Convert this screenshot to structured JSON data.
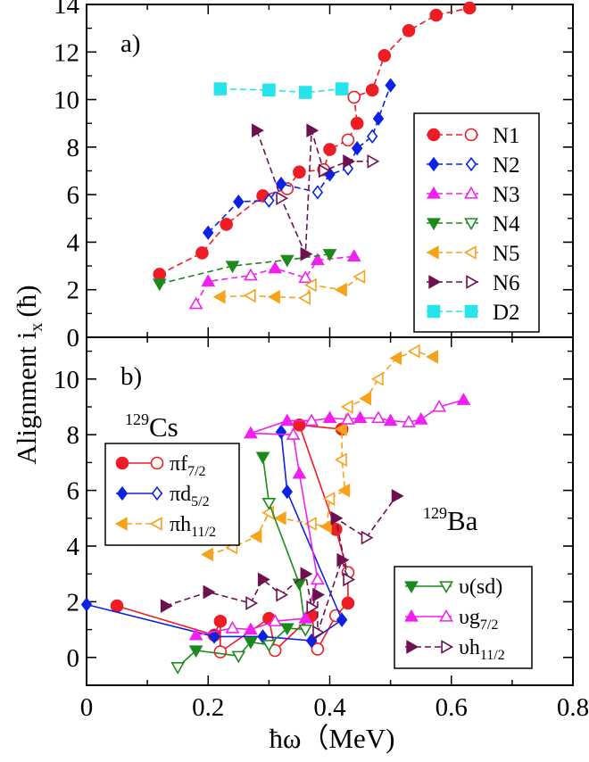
{
  "y_axis_label": "Alignment i",
  "y_axis_label_sub": "x",
  "y_axis_label_unit": "(ħ)",
  "x_axis_label": "ħω（MeV)",
  "chart_data": [
    {
      "type": "line",
      "panel_label": "a)",
      "xlim": [
        0,
        0.8
      ],
      "ylim": [
        0,
        14
      ],
      "grid": false,
      "legend_position": "right",
      "x_ticks": [],
      "y_ticks": [
        "0",
        "2",
        "4",
        "6",
        "8",
        "10",
        "12",
        "14"
      ],
      "series": [
        {
          "name": "N1",
          "color": "#ee1c24",
          "marker": "circle",
          "dash": true,
          "points": [
            [
              0.12,
              2.65,
              1
            ],
            [
              0.19,
              3.55,
              1
            ],
            [
              0.23,
              4.75,
              1
            ],
            [
              0.29,
              5.95,
              1
            ],
            [
              0.33,
              6.25,
              0
            ],
            [
              0.35,
              6.95,
              1
            ],
            [
              0.39,
              7.05,
              0
            ],
            [
              0.4,
              7.9,
              1
            ],
            [
              0.43,
              8.3,
              0
            ],
            [
              0.445,
              9.0,
              1
            ],
            [
              0.44,
              10.1,
              0
            ],
            [
              0.47,
              10.4,
              1
            ],
            [
              0.49,
              11.85,
              1
            ],
            [
              0.53,
              12.9,
              1
            ],
            [
              0.575,
              13.55,
              1
            ],
            [
              0.63,
              13.85,
              1
            ]
          ]
        },
        {
          "name": "N2",
          "color": "#0b22e4",
          "marker": "diamond",
          "dash": true,
          "points": [
            [
              0.2,
              4.4,
              1
            ],
            [
              0.25,
              5.7,
              1
            ],
            [
              0.3,
              5.75,
              0
            ],
            [
              0.32,
              6.45,
              1
            ],
            [
              0.38,
              6.1,
              0
            ],
            [
              0.4,
              6.85,
              1
            ],
            [
              0.43,
              7.1,
              0
            ],
            [
              0.445,
              7.95,
              1
            ],
            [
              0.47,
              8.45,
              0
            ],
            [
              0.48,
              9.2,
              1
            ],
            [
              0.5,
              10.6,
              1
            ]
          ]
        },
        {
          "name": "N3",
          "color": "#f020f0",
          "marker": "triangle-up",
          "dash": true,
          "points": [
            [
              0.18,
              1.4,
              0
            ],
            [
              0.2,
              2.35,
              1
            ],
            [
              0.27,
              2.6,
              0
            ],
            [
              0.31,
              2.9,
              1
            ],
            [
              0.36,
              2.5,
              0
            ],
            [
              0.38,
              3.25,
              1
            ],
            [
              0.44,
              3.4,
              1
            ]
          ]
        },
        {
          "name": "N4",
          "color": "#1b8a1b",
          "marker": "triangle-down",
          "dash": true,
          "points": [
            [
              0.12,
              2.25,
              1
            ],
            [
              0.24,
              3.0,
              1
            ],
            [
              0.33,
              3.25,
              1
            ],
            [
              0.4,
              3.5,
              1
            ]
          ]
        },
        {
          "name": "N5",
          "color": "#f7a21b",
          "marker": "triangle-left",
          "dash": true,
          "points": [
            [
              0.22,
              1.7,
              1
            ],
            [
              0.27,
              1.75,
              0
            ],
            [
              0.31,
              1.7,
              1
            ],
            [
              0.36,
              1.65,
              0
            ],
            [
              0.37,
              2.2,
              0
            ],
            [
              0.42,
              2.0,
              1
            ],
            [
              0.45,
              2.55,
              0
            ]
          ]
        },
        {
          "name": "N6",
          "color": "#6d1150",
          "marker": "triangle-right",
          "dash": true,
          "points": [
            [
              0.28,
              8.7,
              1
            ],
            [
              0.32,
              5.85,
              0
            ],
            [
              0.36,
              3.5,
              1
            ],
            [
              0.37,
              8.7,
              1
            ],
            [
              0.39,
              7.0,
              0
            ],
            [
              0.43,
              7.4,
              1
            ],
            [
              0.47,
              7.4,
              0
            ]
          ]
        },
        {
          "name": "D2",
          "color": "#26e4ea",
          "marker": "square",
          "dash": true,
          "points": [
            [
              0.22,
              10.45,
              1
            ],
            [
              0.3,
              10.4,
              1
            ],
            [
              0.36,
              10.3,
              1
            ],
            [
              0.42,
              10.45,
              1
            ]
          ]
        }
      ]
    },
    {
      "type": "line",
      "panel_label": "b)",
      "xlim": [
        0,
        0.8
      ],
      "ylim": [
        -1,
        11.5
      ],
      "grid": false,
      "x_ticks": [
        "0",
        "0.2",
        "0.4",
        "0.6",
        "0.8"
      ],
      "y_ticks": [
        "0",
        "2",
        "4",
        "6",
        "8",
        "10"
      ],
      "annotations": [
        {
          "mass": "129",
          "element": "Cs"
        },
        {
          "mass": "129",
          "element": "Ba"
        }
      ],
      "legends": [
        {
          "position": "left",
          "entries": [
            {
              "base": "πf",
              "sub": "7/2",
              "series": "pi_f72"
            },
            {
              "base": "πd",
              "sub": "5/2",
              "series": "pi_d52"
            },
            {
              "base": "πh",
              "sub": "11/2",
              "series": "pi_h112"
            }
          ]
        },
        {
          "position": "bottom-right",
          "entries": [
            {
              "base": "υ(sd)",
              "sub": "",
              "series": "nu_sd"
            },
            {
              "base": "υg",
              "sub": "7/2",
              "series": "nu_g72"
            },
            {
              "base": "υh",
              "sub": "11/2",
              "series": "nu_h112"
            }
          ]
        }
      ],
      "series": [
        {
          "id": "pi_f72",
          "color": "#ee1c24",
          "marker": "circle",
          "dash": false,
          "points": [
            [
              0.05,
              1.85,
              1
            ],
            [
              0.21,
              0.8,
              1
            ],
            [
              0.22,
              1.3,
              1
            ],
            [
              0.22,
              0.2,
              0
            ],
            [
              0.3,
              1.4,
              1
            ],
            [
              0.31,
              0.25,
              0
            ],
            [
              0.37,
              1.5,
              1
            ],
            [
              0.38,
              0.3,
              0
            ],
            [
              0.41,
              1.5,
              0
            ],
            [
              0.43,
              1.95,
              1
            ],
            [
              0.43,
              3.05,
              0
            ],
            [
              0.41,
              4.6,
              1
            ],
            [
              0.35,
              8.35,
              1
            ],
            [
              0.42,
              8.2,
              1
            ]
          ]
        },
        {
          "id": "pi_d52",
          "color": "#0b22e4",
          "marker": "diamond",
          "dash": false,
          "points": [
            [
              0.0,
              1.9,
              1
            ],
            [
              0.21,
              0.75,
              1
            ],
            [
              0.29,
              0.75,
              1
            ],
            [
              0.37,
              0.6,
              1
            ],
            [
              0.42,
              1.35,
              1
            ],
            [
              0.33,
              5.95,
              1
            ],
            [
              0.32,
              8.1,
              1
            ]
          ]
        },
        {
          "id": "pi_h112",
          "color": "#f7a21b",
          "marker": "triangle-left",
          "dash": true,
          "points": [
            [
              0.2,
              3.7,
              1
            ],
            [
              0.24,
              3.95,
              0
            ],
            [
              0.28,
              4.35,
              1
            ],
            [
              0.3,
              5.2,
              0
            ],
            [
              0.32,
              5.0,
              1
            ],
            [
              0.37,
              4.8,
              0
            ],
            [
              0.395,
              4.7,
              1
            ],
            [
              0.4,
              5.7,
              0
            ],
            [
              0.425,
              6.0,
              1
            ],
            [
              0.42,
              7.1,
              0
            ],
            [
              0.42,
              8.2,
              1
            ],
            [
              0.43,
              9.0,
              0
            ],
            [
              0.46,
              9.3,
              1
            ],
            [
              0.48,
              10.0,
              0
            ],
            [
              0.51,
              10.75,
              1
            ],
            [
              0.54,
              11.0,
              0
            ],
            [
              0.57,
              10.8,
              1
            ]
          ]
        },
        {
          "id": "nu_sd",
          "color": "#1b8a1b",
          "marker": "triangle-down",
          "dash": false,
          "points": [
            [
              0.15,
              -0.35,
              0
            ],
            [
              0.18,
              0.25,
              1
            ],
            [
              0.25,
              0.05,
              0
            ],
            [
              0.27,
              0.55,
              1
            ],
            [
              0.3,
              0.45,
              0
            ],
            [
              0.33,
              1.05,
              1
            ],
            [
              0.36,
              1.0,
              0
            ],
            [
              0.35,
              2.65,
              1
            ],
            [
              0.3,
              5.55,
              0
            ],
            [
              0.29,
              7.2,
              1
            ]
          ]
        },
        {
          "id": "nu_g72",
          "color": "#f020f0",
          "marker": "triangle-up",
          "dash": false,
          "points": [
            [
              0.18,
              0.8,
              1
            ],
            [
              0.24,
              1.05,
              0
            ],
            [
              0.27,
              1.0,
              1
            ],
            [
              0.31,
              1.3,
              0
            ],
            [
              0.36,
              1.4,
              1
            ],
            [
              0.38,
              2.8,
              0
            ],
            [
              0.35,
              6.6,
              1
            ],
            [
              0.34,
              8.0,
              0
            ],
            [
              0.27,
              8.05,
              1
            ],
            [
              0.33,
              8.5,
              1
            ],
            [
              0.37,
              8.5,
              0
            ],
            [
              0.4,
              8.6,
              1
            ],
            [
              0.43,
              8.55,
              0
            ],
            [
              0.45,
              8.6,
              1
            ],
            [
              0.48,
              8.6,
              0
            ],
            [
              0.5,
              8.5,
              1
            ],
            [
              0.53,
              8.45,
              0
            ],
            [
              0.55,
              8.55,
              1
            ],
            [
              0.58,
              9.0,
              0
            ],
            [
              0.62,
              9.25,
              1
            ]
          ]
        },
        {
          "id": "nu_h112",
          "color": "#6d1150",
          "marker": "triangle-right",
          "dash": true,
          "points": [
            [
              0.13,
              1.85,
              1
            ],
            [
              0.2,
              2.35,
              1
            ],
            [
              0.27,
              1.95,
              0
            ],
            [
              0.29,
              2.8,
              1
            ],
            [
              0.32,
              2.25,
              0
            ],
            [
              0.36,
              3.0,
              1
            ],
            [
              0.37,
              1.8,
              0
            ],
            [
              0.38,
              2.25,
              1
            ],
            [
              0.38,
              0.9,
              0
            ],
            [
              0.42,
              3.5,
              1
            ],
            [
              0.43,
              2.8,
              0
            ],
            [
              0.41,
              5.0,
              1
            ],
            [
              0.46,
              4.3,
              0
            ],
            [
              0.51,
              5.8,
              1
            ]
          ]
        }
      ]
    }
  ]
}
